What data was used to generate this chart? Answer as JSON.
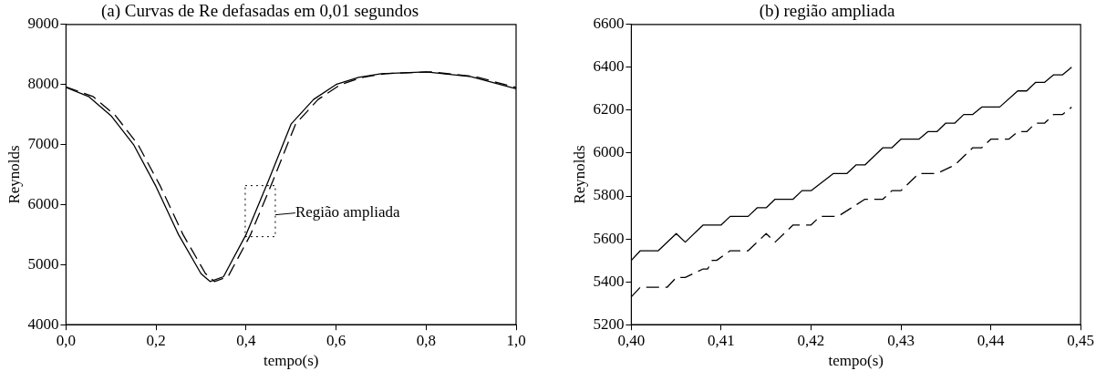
{
  "chart_data": [
    {
      "type": "line",
      "title": "(a) Curvas de Re defasadas em 0,01 segundos",
      "xlabel": "tempo(s)",
      "ylabel": "Reynolds",
      "xlim": [
        0,
        1
      ],
      "xticks": [
        {
          "value": 0,
          "label": "0,0"
        },
        {
          "value": 0.2,
          "label": "0,2"
        },
        {
          "value": 0.4,
          "label": "0,4"
        },
        {
          "value": 0.6,
          "label": "0,6"
        },
        {
          "value": 0.8,
          "label": "0,8"
        },
        {
          "value": 1,
          "label": "1,0"
        }
      ],
      "ylim": [
        4000,
        9000
      ],
      "yticks": [
        4000,
        5000,
        6000,
        7000,
        8000,
        9000
      ],
      "grid": false,
      "legend": false,
      "marker": "none",
      "annotations": [
        "Região ampliada"
      ],
      "series": [
        {
          "color": "#000000",
          "line_style": "solid",
          "x": [
            0,
            0.05,
            0.1,
            0.15,
            0.2,
            0.25,
            0.3,
            0.32,
            0.35,
            0.4,
            0.45,
            0.5,
            0.55,
            0.6,
            0.65,
            0.7,
            0.8,
            0.9,
            1
          ],
          "values": [
            7950,
            7800,
            7480,
            7000,
            6300,
            5500,
            4850,
            4720,
            4800,
            5500,
            6400,
            7340,
            7750,
            8000,
            8120,
            8180,
            8210,
            8130,
            7930
          ]
        },
        {
          "color": "#000000",
          "line_style": "dashed",
          "x": [
            0,
            0.06,
            0.11,
            0.16,
            0.21,
            0.26,
            0.31,
            0.33,
            0.36,
            0.41,
            0.46,
            0.51,
            0.56,
            0.61,
            0.66,
            0.71,
            0.81,
            0.91,
            1
          ],
          "values": [
            7960,
            7800,
            7480,
            7000,
            6300,
            5500,
            4850,
            4720,
            4800,
            5500,
            6400,
            7340,
            7750,
            8000,
            8120,
            8180,
            8210,
            8130,
            7950
          ]
        }
      ]
    },
    {
      "type": "line",
      "title": "(b) região ampliada",
      "xlabel": "tempo(s)",
      "ylabel": "Reynolds",
      "xlim": [
        0.4,
        0.45
      ],
      "xticks": [
        {
          "value": 0.4,
          "label": "0,40"
        },
        {
          "value": 0.41,
          "label": "0,41"
        },
        {
          "value": 0.42,
          "label": "0,42"
        },
        {
          "value": 0.43,
          "label": "0,43"
        },
        {
          "value": 0.44,
          "label": "0,44"
        },
        {
          "value": 0.45,
          "label": "0,45"
        }
      ],
      "ylim": [
        5200,
        6600
      ],
      "yticks": [
        5200,
        5400,
        5600,
        5800,
        6000,
        6200,
        6400,
        6600
      ],
      "grid": false,
      "legend": false,
      "marker": "none",
      "series": [
        {
          "color": "#000000",
          "line_style": "solid",
          "x": [
            0.4,
            0.401,
            0.403,
            0.405,
            0.406,
            0.408,
            0.41,
            0.411,
            0.413,
            0.414,
            0.415,
            0.416,
            0.418,
            0.419,
            0.42,
            0.4225,
            0.424,
            0.425,
            0.426,
            0.428,
            0.429,
            0.43,
            0.432,
            0.433,
            0.434,
            0.435,
            0.436,
            0.437,
            0.438,
            0.439,
            0.441,
            0.443,
            0.444,
            0.445,
            0.446,
            0.447,
            0.448,
            0.449
          ],
          "values": [
            5500,
            5545,
            5545,
            5625,
            5585,
            5665,
            5665,
            5705,
            5705,
            5745,
            5745,
            5785,
            5785,
            5825,
            5825,
            5905,
            5905,
            5945,
            5945,
            6025,
            6025,
            6065,
            6065,
            6100,
            6100,
            6140,
            6140,
            6180,
            6180,
            6215,
            6215,
            6290,
            6290,
            6330,
            6330,
            6365,
            6365,
            6400
          ]
        },
        {
          "color": "#000000",
          "line_style": "dashed",
          "x": [
            0.4,
            0.401,
            0.404,
            0.405,
            0.406,
            0.408,
            0.4085,
            0.409,
            0.4095,
            0.411,
            0.413,
            0.415,
            0.416,
            0.418,
            0.42,
            0.421,
            0.423,
            0.426,
            0.428,
            0.429,
            0.43,
            0.432,
            0.434,
            0.436,
            0.438,
            0.439,
            0.44,
            0.442,
            0.443,
            0.444,
            0.445,
            0.446,
            0.447,
            0.448,
            0.449
          ],
          "values": [
            5330,
            5375,
            5375,
            5420,
            5420,
            5460,
            5460,
            5500,
            5500,
            5545,
            5545,
            5625,
            5585,
            5665,
            5665,
            5705,
            5705,
            5785,
            5785,
            5825,
            5825,
            5905,
            5905,
            5945,
            6025,
            6025,
            6065,
            6065,
            6100,
            6100,
            6140,
            6140,
            6180,
            6180,
            6215
          ]
        }
      ]
    }
  ]
}
